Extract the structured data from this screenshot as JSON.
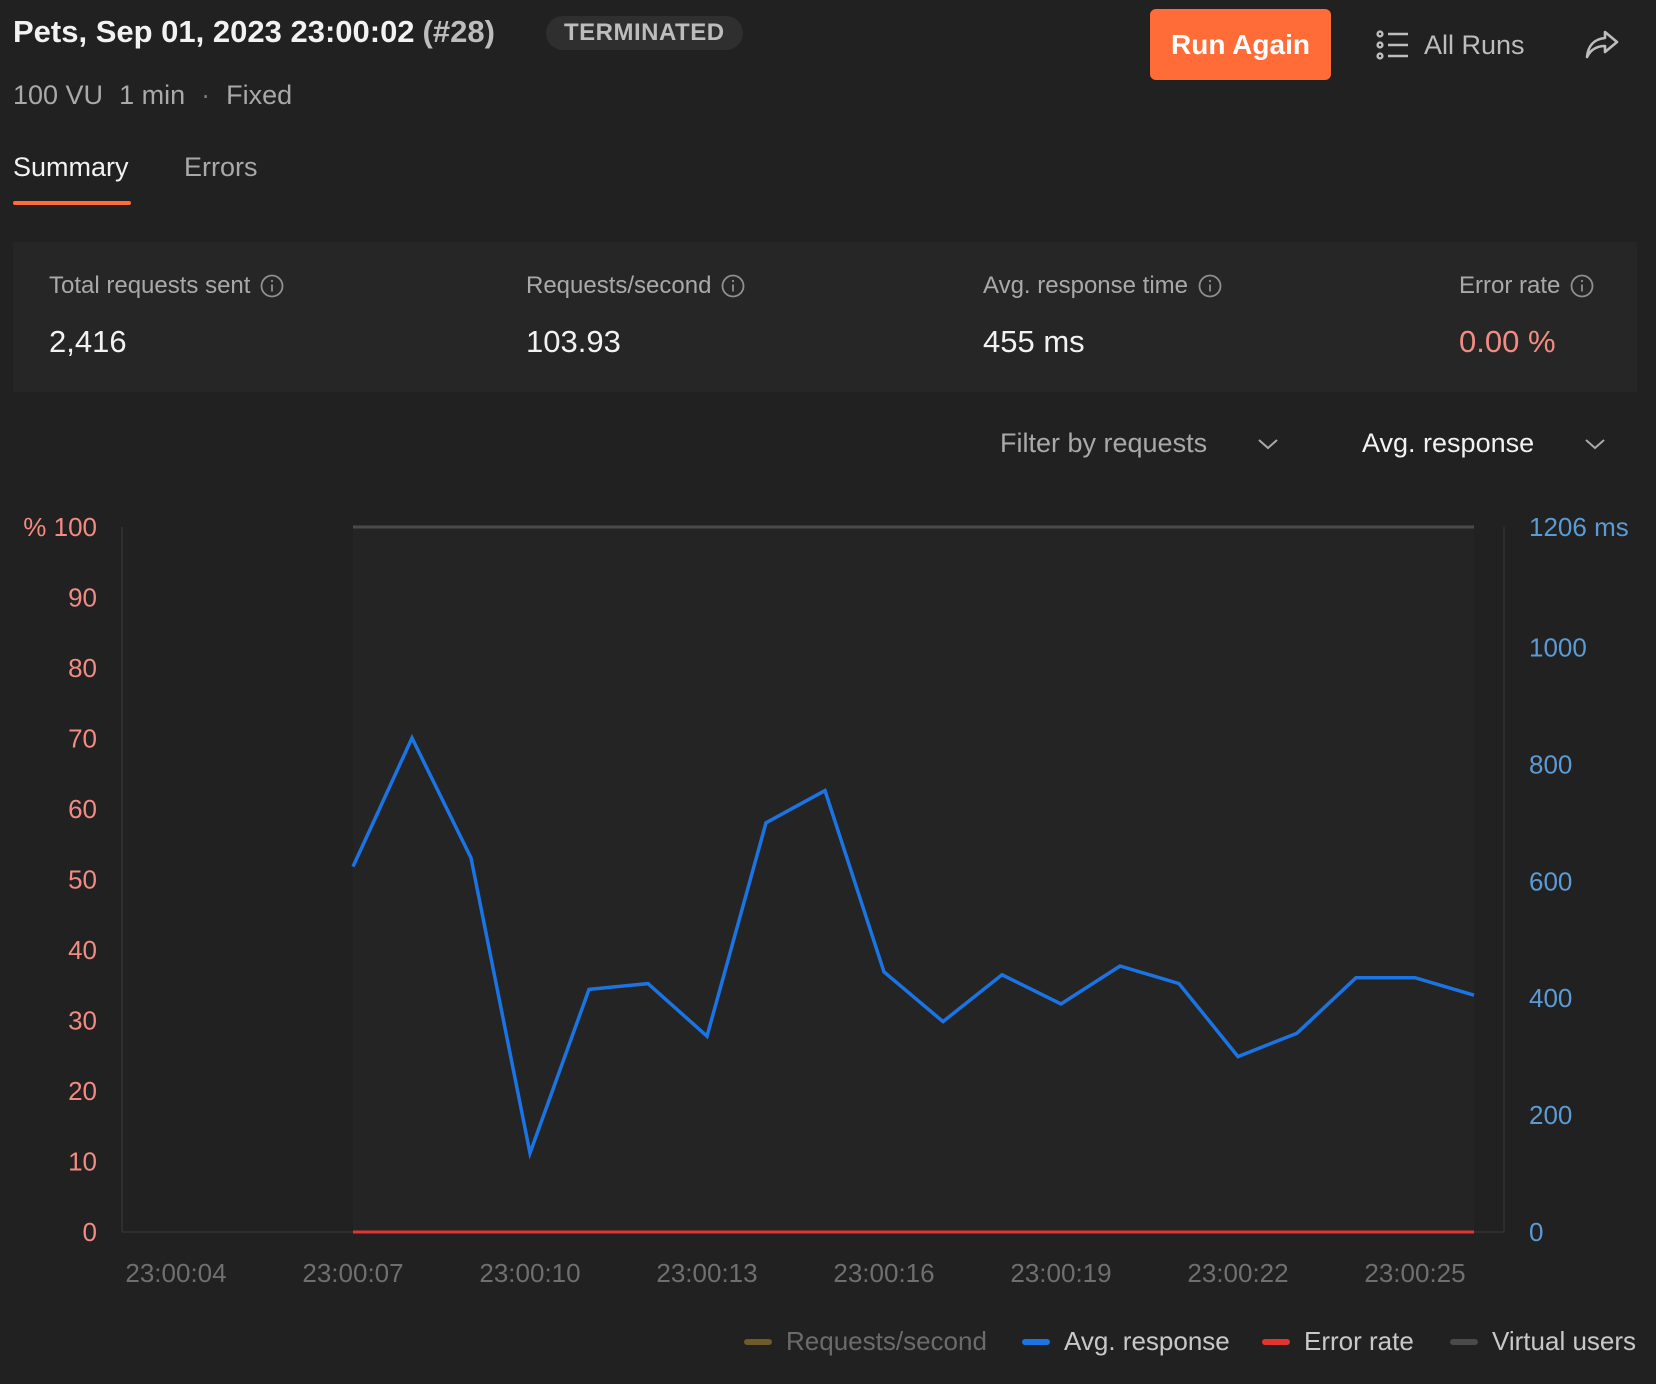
{
  "header": {
    "title": "Pets, Sep 01, 2023 23:00:02",
    "run_number": "(#28)",
    "status": "TERMINATED",
    "run_again_label": "Run Again",
    "all_runs_label": "All Runs",
    "meta": {
      "vu": "100 VU",
      "duration": "1 min",
      "separator": "·",
      "profile": "Fixed"
    }
  },
  "tabs": [
    {
      "label": "Summary",
      "active": true
    },
    {
      "label": "Errors",
      "active": false
    }
  ],
  "stats": [
    {
      "label": "Total requests sent",
      "value": "2,416"
    },
    {
      "label": "Requests/second",
      "value": "103.93"
    },
    {
      "label": "Avg. response time",
      "value": "455 ms"
    },
    {
      "label": "Error rate",
      "value": "0.00 %"
    }
  ],
  "filters": {
    "requests_filter": "Filter by requests",
    "metric_select": "Avg. response"
  },
  "colors": {
    "accent": "#ff6c37",
    "avg_response": "#1b74e4",
    "error_rate": "#e3342f",
    "requests_per_second": "#8a6d2c",
    "virtual_users": "#4a4a4a",
    "left_axis": "#f28b82",
    "right_axis": "#5b9bd5"
  },
  "chart_data": {
    "type": "line",
    "x_ticks": [
      "23:00:04",
      "23:00:07",
      "23:00:10",
      "23:00:13",
      "23:00:16",
      "23:00:19",
      "23:00:22",
      "23:00:25"
    ],
    "left_axis": {
      "unit": "%",
      "ticks": [
        100,
        90,
        80,
        70,
        60,
        50,
        40,
        30,
        20,
        10,
        0
      ],
      "range": [
        0,
        100
      ]
    },
    "right_axis": {
      "unit": "ms",
      "ticks": [
        1206,
        1000,
        800,
        600,
        400,
        200,
        0
      ],
      "range": [
        0,
        1206
      ]
    },
    "series": [
      {
        "name": "Avg. response",
        "axis": "right",
        "x": [
          "23:00:07",
          "23:00:08",
          "23:00:09",
          "23:00:10",
          "23:00:11",
          "23:00:12",
          "23:00:13",
          "23:00:14",
          "23:00:15",
          "23:00:16",
          "23:00:17",
          "23:00:18",
          "23:00:19",
          "23:00:20",
          "23:00:21",
          "23:00:22",
          "23:00:23",
          "23:00:24",
          "23:00:25",
          "23:00:26"
        ],
        "values": [
          625,
          845,
          640,
          135,
          415,
          425,
          335,
          700,
          755,
          445,
          360,
          440,
          390,
          455,
          425,
          300,
          340,
          435,
          435,
          405
        ]
      },
      {
        "name": "Error rate",
        "axis": "left",
        "x": [
          "23:00:07",
          "23:00:26"
        ],
        "values": [
          0,
          0
        ]
      },
      {
        "name": "Virtual users",
        "axis": "left",
        "x": [
          "23:00:07",
          "23:00:26"
        ],
        "values": [
          100,
          100
        ]
      }
    ]
  },
  "legend": [
    {
      "label": "Requests/second",
      "color_key": "requests_per_second",
      "dimmed": true
    },
    {
      "label": "Avg. response",
      "color_key": "avg_response",
      "dimmed": false
    },
    {
      "label": "Error rate",
      "color_key": "error_rate",
      "dimmed": false
    },
    {
      "label": "Virtual users",
      "color_key": "virtual_users",
      "dimmed": false
    }
  ]
}
